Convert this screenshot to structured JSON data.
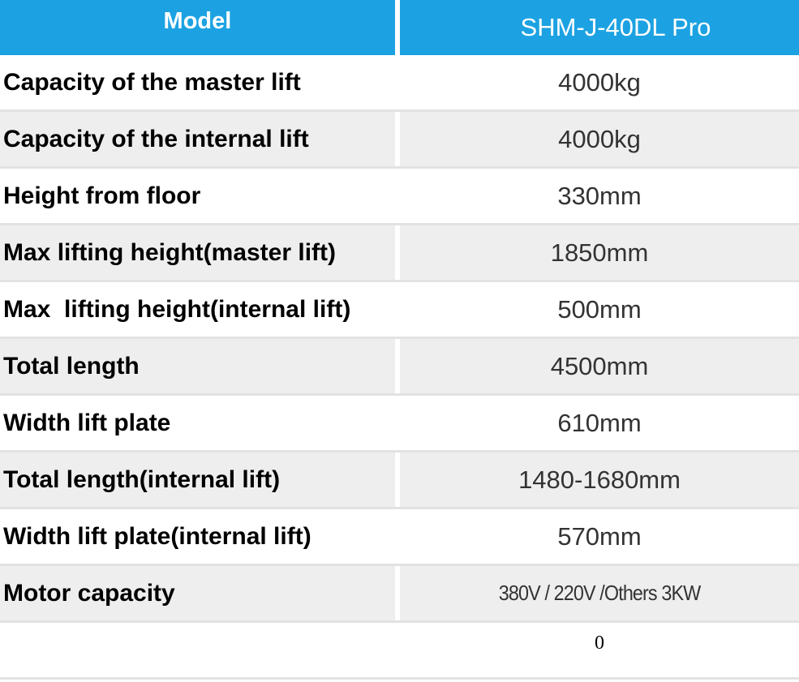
{
  "table": {
    "header": [
      "Model",
      "SHM-J-40DL Pro"
    ],
    "rows": [
      [
        "Capacity of the master lift",
        "4000kg"
      ],
      [
        "Capacity of the internal lift",
        "4000kg"
      ],
      [
        "Height from floor",
        "330mm"
      ],
      [
        "Max lifting height(master lift)",
        "1850mm"
      ],
      [
        "Max  lifting height(internal lift)",
        "500mm"
      ],
      [
        "Total length",
        "4500mm"
      ],
      [
        "Width lift plate",
        "610mm"
      ],
      [
        "Total length(internal lift)",
        "1480-1680mm"
      ],
      [
        "Width lift plate(internal lift)",
        "570mm"
      ],
      [
        "Motor capacity",
        "380V / 220V /Others 3KW"
      ],
      [
        null,
        "0"
      ]
    ]
  }
}
